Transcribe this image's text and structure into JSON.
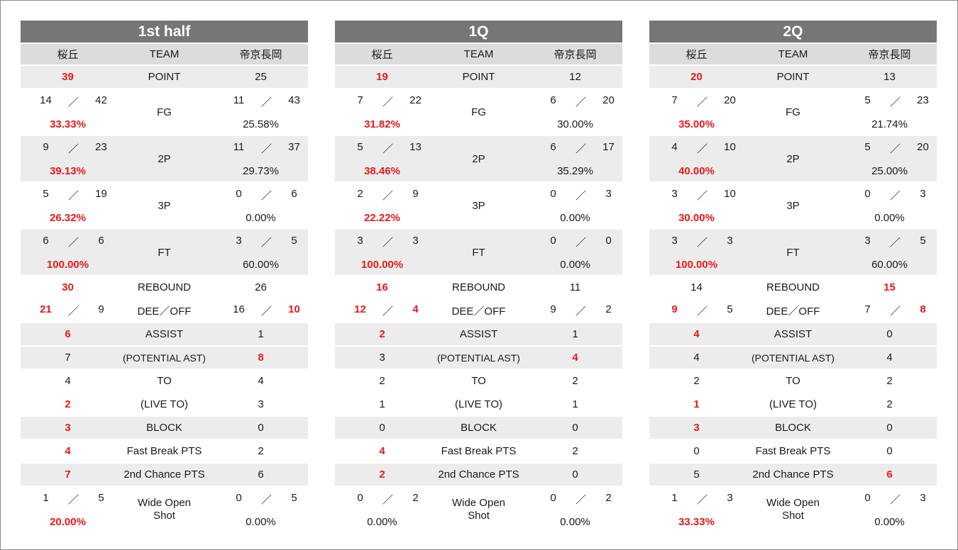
{
  "team_left": "桜丘",
  "team_right": "帝京長岡",
  "team_header": "TEAM",
  "slash": "／",
  "panels": [
    {
      "title": "1st half",
      "point": {
        "label": "POINT",
        "l": "39",
        "r": "25"
      },
      "fg": {
        "label": "FG",
        "l_made": "14",
        "l_att": "42",
        "l_pct": "33.33%",
        "r_made": "11",
        "r_att": "43",
        "r_pct": "25.58%"
      },
      "p2": {
        "label": "2P",
        "l_made": "9",
        "l_att": "23",
        "l_pct": "39.13%",
        "r_made": "11",
        "r_att": "37",
        "r_pct": "29.73%"
      },
      "p3": {
        "label": "3P",
        "l_made": "5",
        "l_att": "19",
        "l_pct": "26.32%",
        "r_made": "0",
        "r_att": "6",
        "r_pct": "0.00%"
      },
      "ft": {
        "label": "FT",
        "l_made": "6",
        "l_att": "6",
        "l_pct": "100.00%",
        "r_made": "3",
        "r_att": "5",
        "r_pct": "60.00%"
      },
      "rebound": {
        "label": "REBOUND",
        "l": "30",
        "r": "26"
      },
      "deeoff": {
        "label": "DEE／OFF",
        "l_def": "21",
        "l_off": "9",
        "r_def": "16",
        "r_off": "10"
      },
      "assist": {
        "label": "ASSIST",
        "l": "6",
        "r": "1"
      },
      "potential": {
        "label": "(POTENTIAL AST)",
        "l": "7",
        "r": "8"
      },
      "to": {
        "label": "TO",
        "l": "4",
        "r": "4"
      },
      "liveto": {
        "label": "(LIVE TO)",
        "l": "2",
        "r": "3"
      },
      "block": {
        "label": "BLOCK",
        "l": "3",
        "r": "0"
      },
      "fastbreak": {
        "label": "Fast Break PTS",
        "l": "4",
        "r": "2"
      },
      "second": {
        "label": "2nd Chance PTS",
        "l": "7",
        "r": "6"
      },
      "wideopen": {
        "label1": "Wide Open",
        "label2": "Shot",
        "l_made": "1",
        "l_att": "5",
        "l_pct": "20.00%",
        "r_made": "0",
        "r_att": "5",
        "r_pct": "0.00%"
      }
    },
    {
      "title": "1Q",
      "point": {
        "label": "POINT",
        "l": "19",
        "r": "12"
      },
      "fg": {
        "label": "FG",
        "l_made": "7",
        "l_att": "22",
        "l_pct": "31.82%",
        "r_made": "6",
        "r_att": "20",
        "r_pct": "30.00%"
      },
      "p2": {
        "label": "2P",
        "l_made": "5",
        "l_att": "13",
        "l_pct": "38.46%",
        "r_made": "6",
        "r_att": "17",
        "r_pct": "35.29%"
      },
      "p3": {
        "label": "3P",
        "l_made": "2",
        "l_att": "9",
        "l_pct": "22.22%",
        "r_made": "0",
        "r_att": "3",
        "r_pct": "0.00%"
      },
      "ft": {
        "label": "FT",
        "l_made": "3",
        "l_att": "3",
        "l_pct": "100.00%",
        "r_made": "0",
        "r_att": "0",
        "r_pct": "0.00%"
      },
      "rebound": {
        "label": "REBOUND",
        "l": "16",
        "r": "11"
      },
      "deeoff": {
        "label": "DEE／OFF",
        "l_def": "12",
        "l_off": "4",
        "r_def": "9",
        "r_off": "2"
      },
      "assist": {
        "label": "ASSIST",
        "l": "2",
        "r": "1"
      },
      "potential": {
        "label": "(POTENTIAL AST)",
        "l": "3",
        "r": "4"
      },
      "to": {
        "label": "TO",
        "l": "2",
        "r": "2"
      },
      "liveto": {
        "label": "(LIVE TO)",
        "l": "1",
        "r": "1"
      },
      "block": {
        "label": "BLOCK",
        "l": "0",
        "r": "0"
      },
      "fastbreak": {
        "label": "Fast Break PTS",
        "l": "4",
        "r": "2"
      },
      "second": {
        "label": "2nd Chance PTS",
        "l": "2",
        "r": "0"
      },
      "wideopen": {
        "label1": "Wide Open",
        "label2": "Shot",
        "l_made": "0",
        "l_att": "2",
        "l_pct": "0.00%",
        "r_made": "0",
        "r_att": "2",
        "r_pct": "0.00%"
      }
    },
    {
      "title": "2Q",
      "point": {
        "label": "POINT",
        "l": "20",
        "r": "13"
      },
      "fg": {
        "label": "FG",
        "l_made": "7",
        "l_att": "20",
        "l_pct": "35.00%",
        "r_made": "5",
        "r_att": "23",
        "r_pct": "21.74%"
      },
      "p2": {
        "label": "2P",
        "l_made": "4",
        "l_att": "10",
        "l_pct": "40.00%",
        "r_made": "5",
        "r_att": "20",
        "r_pct": "25.00%"
      },
      "p3": {
        "label": "3P",
        "l_made": "3",
        "l_att": "10",
        "l_pct": "30.00%",
        "r_made": "0",
        "r_att": "3",
        "r_pct": "0.00%"
      },
      "ft": {
        "label": "FT",
        "l_made": "3",
        "l_att": "3",
        "l_pct": "100.00%",
        "r_made": "3",
        "r_att": "5",
        "r_pct": "60.00%"
      },
      "rebound": {
        "label": "REBOUND",
        "l": "14",
        "r": "15"
      },
      "deeoff": {
        "label": "DEE／OFF",
        "l_def": "9",
        "l_off": "5",
        "r_def": "7",
        "r_off": "8"
      },
      "assist": {
        "label": "ASSIST",
        "l": "4",
        "r": "0"
      },
      "potential": {
        "label": "(POTENTIAL AST)",
        "l": "4",
        "r": "4"
      },
      "to": {
        "label": "TO",
        "l": "2",
        "r": "2"
      },
      "liveto": {
        "label": "(LIVE TO)",
        "l": "1",
        "r": "2"
      },
      "block": {
        "label": "BLOCK",
        "l": "3",
        "r": "0"
      },
      "fastbreak": {
        "label": "Fast Break PTS",
        "l": "0",
        "r": "0"
      },
      "second": {
        "label": "2nd Chance PTS",
        "l": "5",
        "r": "6"
      },
      "wideopen": {
        "label1": "Wide Open",
        "label2": "Shot",
        "l_made": "1",
        "l_att": "3",
        "l_pct": "33.33%",
        "r_made": "0",
        "r_att": "3",
        "r_pct": "0.00%"
      }
    }
  ],
  "colors": {
    "highlight": "#e8191c",
    "title_bg": "#767676",
    "header_bg": "#dcdcdc",
    "stripe": "#ececec"
  }
}
